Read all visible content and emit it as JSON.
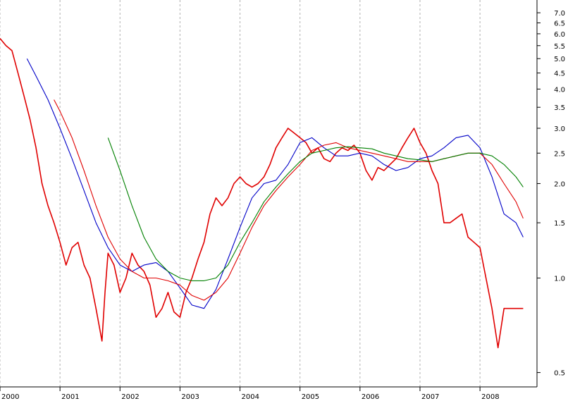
{
  "chart_data": {
    "type": "line",
    "y_scale": "log",
    "ylim": [
      0.45,
      7.3
    ],
    "y_ticks": [
      {
        "value": 7.0,
        "label": "7.0"
      },
      {
        "value": 6.5,
        "label": "6.5"
      },
      {
        "value": 6.0,
        "label": "6.0"
      },
      {
        "value": 5.5,
        "label": "5.5"
      },
      {
        "value": 5.0,
        "label": "5.0"
      },
      {
        "value": 4.5,
        "label": "4.5"
      },
      {
        "value": 4.0,
        "label": "4.0"
      },
      {
        "value": 3.5,
        "label": "3.5"
      },
      {
        "value": 3.0,
        "label": "3.0"
      },
      {
        "value": 2.5,
        "label": "2.5"
      },
      {
        "value": 2.0,
        "label": "2.0"
      },
      {
        "value": 1.5,
        "label": "1.5"
      },
      {
        "value": 1.0,
        "label": "1.0"
      },
      {
        "value": 0.5,
        "label": "0.5"
      }
    ],
    "xlim": [
      2000.0,
      2008.95
    ],
    "x_ticks": [
      {
        "value": 2000,
        "label": "2000"
      },
      {
        "value": 2001,
        "label": "2001"
      },
      {
        "value": 2002,
        "label": "2002"
      },
      {
        "value": 2003,
        "label": "2003"
      },
      {
        "value": 2004,
        "label": "2004"
      },
      {
        "value": 2005,
        "label": "2005"
      },
      {
        "value": 2006,
        "label": "2006"
      },
      {
        "value": 2007,
        "label": "2007"
      },
      {
        "value": 2008,
        "label": "2008"
      }
    ],
    "grid": "vertical-dashed",
    "series": [
      {
        "color": "#e00000",
        "x": [
          2000.0,
          2000.1,
          2000.2,
          2000.3,
          2000.4,
          2000.5,
          2000.6,
          2000.7,
          2000.8,
          2000.9,
          2001.0,
          2001.1,
          2001.2,
          2001.3,
          2001.4,
          2001.5,
          2001.6,
          2001.7,
          2001.75,
          2001.8,
          2001.9,
          2002.0,
          2002.1,
          2002.2,
          2002.3,
          2002.4,
          2002.5,
          2002.6,
          2002.7,
          2002.8,
          2002.9,
          2003.0,
          2003.1,
          2003.2,
          2003.3,
          2003.4,
          2003.5,
          2003.6,
          2003.7,
          2003.8,
          2003.9,
          2004.0,
          2004.1,
          2004.2,
          2004.3,
          2004.4,
          2004.5,
          2004.6,
          2004.7,
          2004.8,
          2004.9,
          2005.0,
          2005.1,
          2005.2,
          2005.3,
          2005.4,
          2005.5,
          2005.6,
          2005.7,
          2005.8,
          2005.9,
          2006.0,
          2006.1,
          2006.2,
          2006.3,
          2006.4,
          2006.5,
          2006.6,
          2006.7,
          2006.8,
          2006.9,
          2007.0,
          2007.1,
          2007.2,
          2007.3,
          2007.4,
          2007.5,
          2007.6,
          2007.7,
          2007.8,
          2007.9,
          2008.0,
          2008.1,
          2008.2,
          2008.3,
          2008.4,
          2008.5,
          2008.6,
          2008.65,
          2008.7,
          2008.72
        ],
        "values": [
          5.8,
          5.5,
          5.3,
          4.5,
          3.8,
          3.2,
          2.6,
          2.0,
          1.7,
          1.5,
          1.3,
          1.1,
          1.25,
          1.3,
          1.1,
          1.0,
          0.8,
          0.63,
          0.9,
          1.2,
          1.1,
          0.9,
          1.0,
          1.2,
          1.1,
          1.05,
          0.95,
          0.75,
          0.8,
          0.9,
          0.78,
          0.75,
          0.9,
          1.0,
          1.15,
          1.3,
          1.6,
          1.8,
          1.7,
          1.8,
          2.0,
          2.1,
          2.0,
          1.95,
          2.0,
          2.1,
          2.3,
          2.6,
          2.8,
          3.0,
          2.9,
          2.8,
          2.7,
          2.5,
          2.6,
          2.4,
          2.35,
          2.5,
          2.6,
          2.55,
          2.65,
          2.5,
          2.2,
          2.05,
          2.25,
          2.2,
          2.3,
          2.4,
          2.6,
          2.8,
          3.0,
          2.7,
          2.5,
          2.2,
          2.0,
          1.5,
          1.5,
          1.55,
          1.6,
          1.35,
          1.3,
          1.25,
          1.0,
          0.8,
          0.6,
          0.8,
          0.8,
          0.8,
          0.8,
          0.8,
          0.8
        ],
        "label_overrides": {}
      },
      {
        "color": "#0000c8",
        "x": [
          2000.45,
          2000.6,
          2000.8,
          2001.0,
          2001.2,
          2001.4,
          2001.6,
          2001.8,
          2002.0,
          2002.2,
          2002.4,
          2002.6,
          2002.8,
          2003.0,
          2003.2,
          2003.4,
          2003.6,
          2003.8,
          2004.0,
          2004.2,
          2004.4,
          2004.6,
          2004.8,
          2005.0,
          2005.2,
          2005.4,
          2005.6,
          2005.8,
          2006.0,
          2006.2,
          2006.4,
          2006.6,
          2006.8,
          2007.0,
          2007.2,
          2007.4,
          2007.6,
          2007.8,
          2008.0,
          2008.2,
          2008.4,
          2008.6,
          2008.72
        ],
        "values": [
          5.0,
          4.4,
          3.7,
          3.0,
          2.4,
          1.9,
          1.5,
          1.25,
          1.1,
          1.05,
          1.1,
          1.12,
          1.05,
          0.93,
          0.82,
          0.8,
          0.92,
          1.15,
          1.45,
          1.8,
          2.0,
          2.05,
          2.3,
          2.7,
          2.8,
          2.6,
          2.45,
          2.45,
          2.5,
          2.45,
          2.3,
          2.2,
          2.25,
          2.4,
          2.45,
          2.6,
          2.8,
          2.85,
          2.6,
          2.1,
          1.6,
          1.5,
          1.35
        ]
      },
      {
        "color": "#e00000",
        "x": [
          2000.9,
          2001.0,
          2001.2,
          2001.4,
          2001.6,
          2001.8,
          2002.0,
          2002.2,
          2002.4,
          2002.6,
          2002.8,
          2003.0,
          2003.2,
          2003.4,
          2003.6,
          2003.8,
          2004.0,
          2004.2,
          2004.4,
          2004.6,
          2004.8,
          2005.0,
          2005.2,
          2005.4,
          2005.6,
          2005.8,
          2006.0,
          2006.2,
          2006.4,
          2006.6,
          2006.8,
          2007.0,
          2007.2,
          2007.4,
          2007.6,
          2007.8,
          2008.0,
          2008.2,
          2008.4,
          2008.6,
          2008.72
        ],
        "values": [
          3.7,
          3.4,
          2.8,
          2.2,
          1.7,
          1.35,
          1.15,
          1.05,
          1.0,
          1.0,
          0.98,
          0.95,
          0.88,
          0.85,
          0.9,
          1.0,
          1.2,
          1.45,
          1.7,
          1.9,
          2.1,
          2.3,
          2.55,
          2.65,
          2.7,
          2.6,
          2.55,
          2.5,
          2.45,
          2.4,
          2.35,
          2.35,
          2.35,
          2.4,
          2.45,
          2.5,
          2.5,
          2.3,
          2.0,
          1.75,
          1.55
        ]
      },
      {
        "color": "#008000",
        "x": [
          2001.8,
          2002.0,
          2002.2,
          2002.4,
          2002.6,
          2002.8,
          2003.0,
          2003.2,
          2003.4,
          2003.6,
          2003.8,
          2004.0,
          2004.2,
          2004.4,
          2004.6,
          2004.8,
          2005.0,
          2005.2,
          2005.4,
          2005.6,
          2005.8,
          2006.0,
          2006.2,
          2006.4,
          2006.6,
          2006.8,
          2007.0,
          2007.2,
          2007.4,
          2007.6,
          2007.8,
          2008.0,
          2008.2,
          2008.4,
          2008.6,
          2008.72
        ],
        "values": [
          2.8,
          2.2,
          1.7,
          1.35,
          1.15,
          1.05,
          1.0,
          0.98,
          0.98,
          1.0,
          1.1,
          1.3,
          1.5,
          1.75,
          1.95,
          2.15,
          2.35,
          2.5,
          2.55,
          2.6,
          2.62,
          2.6,
          2.58,
          2.5,
          2.45,
          2.4,
          2.38,
          2.35,
          2.4,
          2.45,
          2.5,
          2.5,
          2.45,
          2.3,
          2.1,
          1.95
        ]
      }
    ]
  }
}
